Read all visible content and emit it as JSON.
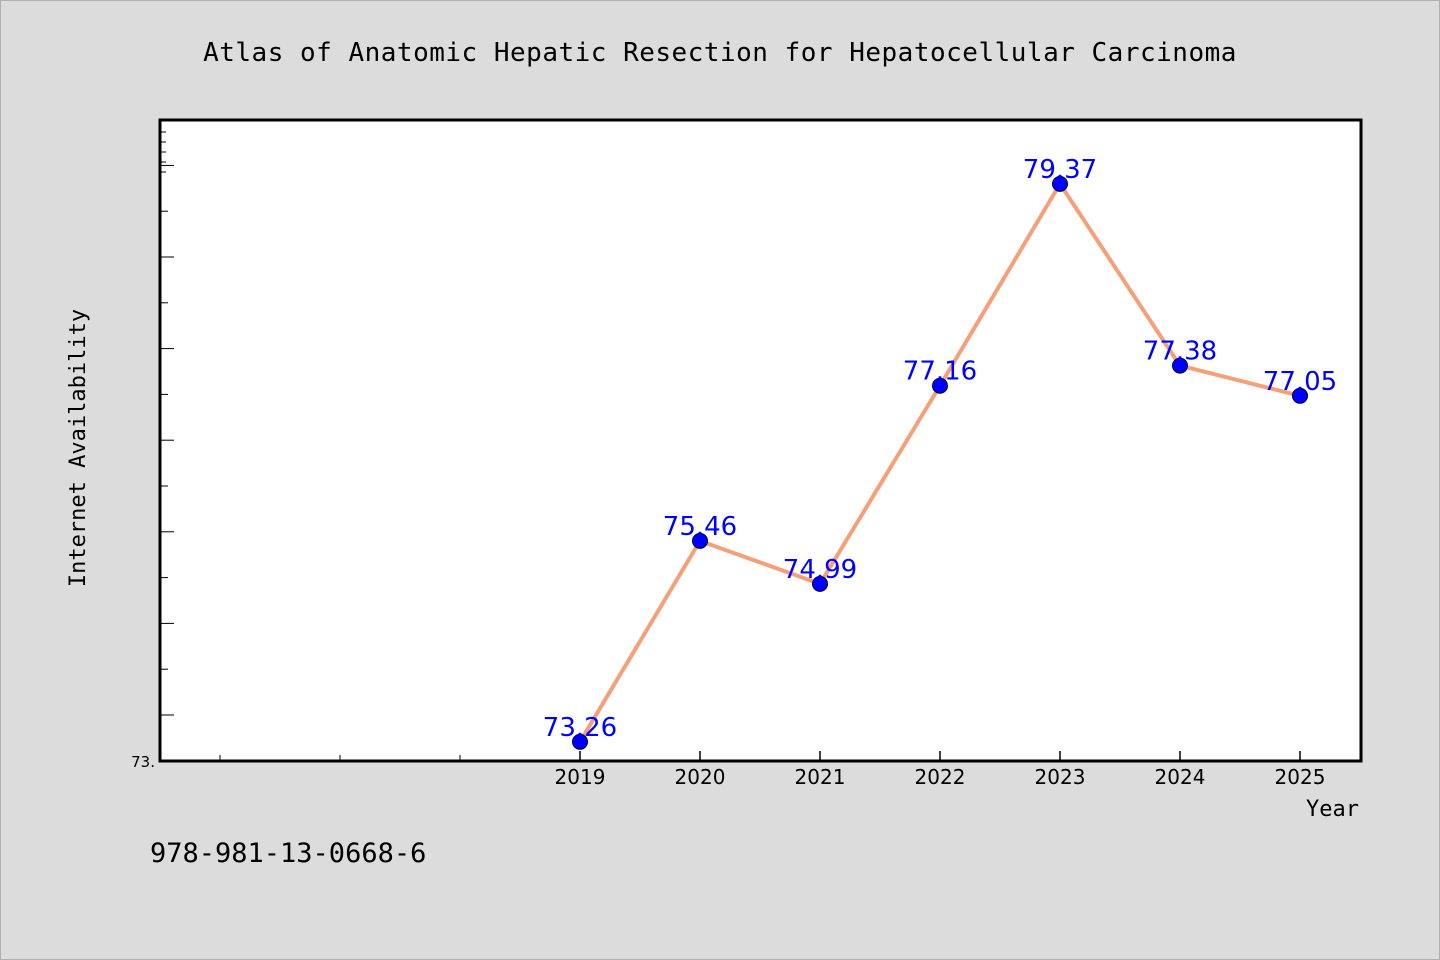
{
  "chart_data": {
    "type": "line",
    "title": "Atlas of Anatomic Hepatic Resection for Hepatocellular Carcinoma",
    "xlabel": "Year",
    "ylabel": "Internet Availability",
    "categories": [
      "2019",
      "2020",
      "2021",
      "2022",
      "2023",
      "2024",
      "2025"
    ],
    "series": [
      {
        "values": [
          73.26,
          75.46,
          74.99,
          77.16,
          79.37,
          77.38,
          77.05
        ],
        "labels": [
          "73.26",
          "75.46",
          "74.99",
          "77.16",
          "79.37",
          "77.38",
          "77.05"
        ]
      }
    ],
    "y_tick_labels": [
      "73."
    ],
    "ylim": [
      73.05,
      80.07
    ],
    "grid": false,
    "colors": {
      "line": "#f4a07a",
      "marker": "#0000ff",
      "data_label": "#0000ff",
      "background": "#dcdcdc",
      "plot_background": "#ffffff"
    }
  },
  "footer": {
    "isbn": "978-981-13-0668-6"
  }
}
